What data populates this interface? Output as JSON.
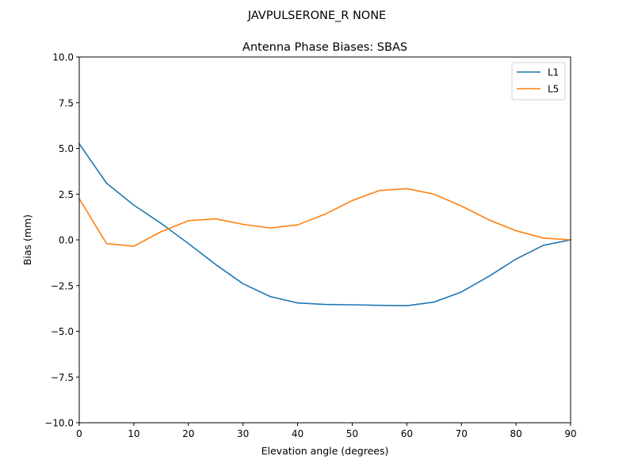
{
  "suptitle": "JAVPULSERONE_R  NONE",
  "chart_data": {
    "type": "line",
    "title": "Antenna Phase Biases: SBAS",
    "xlabel": "Elevation angle (degrees)",
    "ylabel": "Bias (mm)",
    "xlim": [
      0,
      90
    ],
    "ylim": [
      -10,
      10
    ],
    "xticks": [
      0,
      10,
      20,
      30,
      40,
      50,
      60,
      70,
      80,
      90
    ],
    "yticks": [
      -10,
      -7.5,
      -5,
      -2.5,
      0,
      2.5,
      5,
      7.5,
      10
    ],
    "xtick_labels": [
      "0",
      "10",
      "20",
      "30",
      "40",
      "50",
      "60",
      "70",
      "80",
      "90"
    ],
    "ytick_labels": [
      "−10.0",
      "−7.5",
      "−5.0",
      "−2.5",
      "0.0",
      "2.5",
      "5.0",
      "7.5",
      "10.0"
    ],
    "grid": false,
    "legend_position": "top-right",
    "x": [
      0,
      5,
      10,
      15,
      20,
      25,
      30,
      35,
      40,
      45,
      50,
      55,
      60,
      65,
      70,
      75,
      80,
      85,
      90
    ],
    "series": [
      {
        "name": "L1",
        "color": "#1f77b4",
        "values": [
          5.25,
          3.1,
          1.9,
          0.9,
          -0.2,
          -1.35,
          -2.4,
          -3.1,
          -3.45,
          -3.53,
          -3.55,
          -3.58,
          -3.6,
          -3.4,
          -2.85,
          -2.0,
          -1.05,
          -0.3,
          0.0
        ]
      },
      {
        "name": "L5",
        "color": "#ff7f0e",
        "values": [
          2.25,
          -0.2,
          -0.35,
          0.45,
          1.05,
          1.15,
          0.85,
          0.65,
          0.82,
          1.4,
          2.15,
          2.7,
          2.8,
          2.5,
          1.85,
          1.1,
          0.5,
          0.1,
          0.0
        ]
      }
    ]
  }
}
